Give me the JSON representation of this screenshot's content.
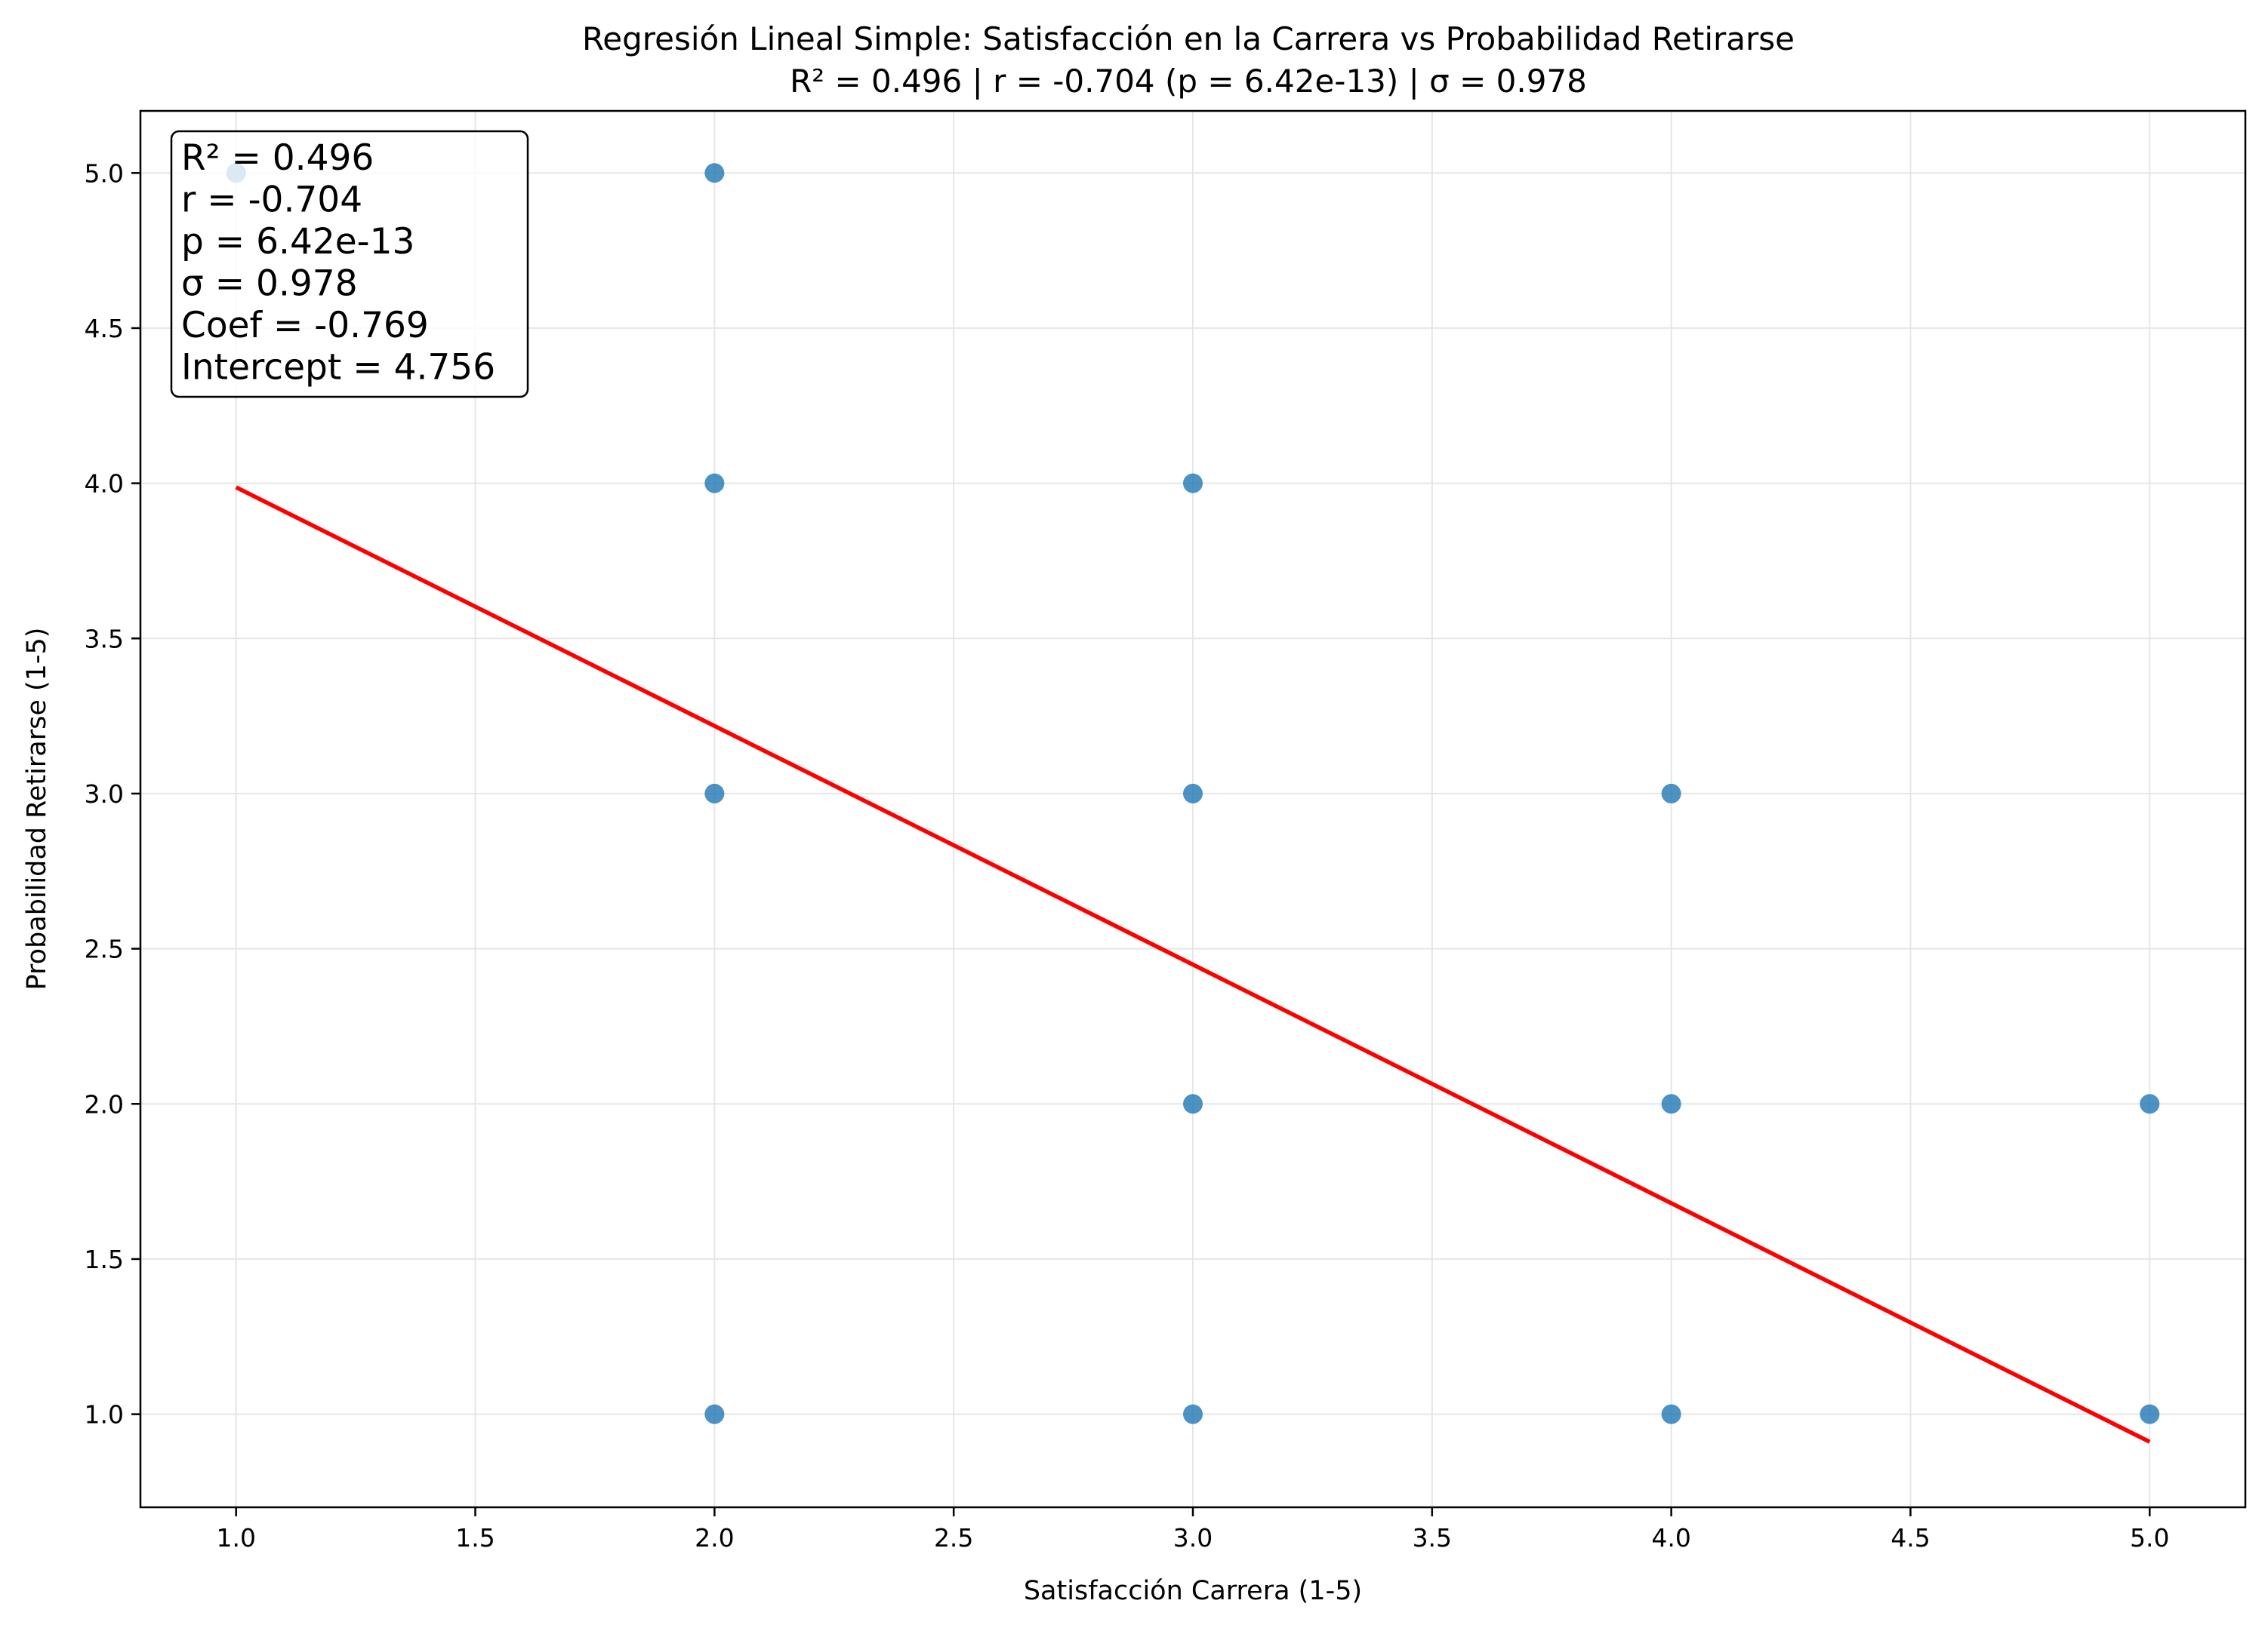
{
  "chart_data": {
    "type": "scatter",
    "title": "Regresión Lineal Simple: Satisfacción en la Carrera vs Probabilidad Retirarse",
    "subtitle": "R² = 0.496 | r = -0.704 (p = 6.42e-13) | σ = 0.978",
    "xlabel": "Satisfacción Carrera (1-5)",
    "ylabel": "Probabilidad Retirarse (1-5)",
    "xlim": [
      0.8,
      5.2
    ],
    "ylim": [
      0.7,
      5.2
    ],
    "xticks": [
      "1.0",
      "1.5",
      "2.0",
      "2.5",
      "3.0",
      "3.5",
      "4.0",
      "4.5",
      "5.0"
    ],
    "yticks": [
      "1.0",
      "1.5",
      "2.0",
      "2.5",
      "3.0",
      "3.5",
      "4.0",
      "4.5",
      "5.0"
    ],
    "grid": true,
    "series": [
      {
        "points": [
          {
            "x": 1,
            "y": 5
          },
          {
            "x": 2,
            "y": 5
          },
          {
            "x": 2,
            "y": 4
          },
          {
            "x": 2,
            "y": 3
          },
          {
            "x": 2,
            "y": 1
          },
          {
            "x": 3,
            "y": 4
          },
          {
            "x": 3,
            "y": 3
          },
          {
            "x": 3,
            "y": 2
          },
          {
            "x": 3,
            "y": 1
          },
          {
            "x": 4,
            "y": 3
          },
          {
            "x": 4,
            "y": 2
          },
          {
            "x": 4,
            "y": 1
          },
          {
            "x": 5,
            "y": 2
          },
          {
            "x": 5,
            "y": 1
          }
        ]
      }
    ],
    "regression": {
      "coef": -0.769,
      "intercept": 4.756,
      "x_range": [
        1,
        5
      ]
    },
    "stats_box": [
      "R² = 0.496",
      "r = -0.704",
      "p = 6.42e-13",
      "σ = 0.978",
      "Coef = -0.769",
      "Intercept = 4.756"
    ],
    "colors": {
      "points": "#1f77b4",
      "regression_line": "#ff0000",
      "grid": "#e6e6e6",
      "axes": "#000000"
    }
  }
}
